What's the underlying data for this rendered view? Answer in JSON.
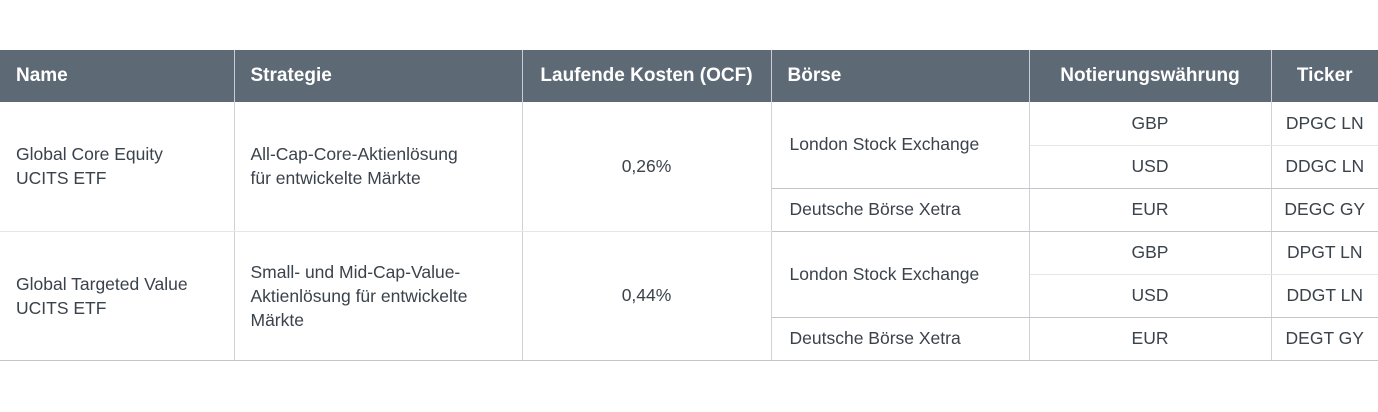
{
  "headers": {
    "name": "Name",
    "strategy": "Strategie",
    "ocf": "Laufende Kosten (OCF)",
    "exchange": "Börse",
    "currency": "Notierungswährung",
    "ticker": "Ticker"
  },
  "funds": [
    {
      "name_line1": "Global Core Equity",
      "name_line2": "UCITS ETF",
      "strategy_line1": "All-Cap-Core-Aktienlösung",
      "strategy_line2": "für entwickelte Märkte",
      "strategy_line3": "",
      "ocf": "0,26%",
      "listings": [
        {
          "exchange": "London Stock Exchange",
          "currency": "GBP",
          "ticker": "DPGC LN"
        },
        {
          "exchange": "London Stock Exchange",
          "currency": "USD",
          "ticker": "DDGC LN"
        },
        {
          "exchange": "Deutsche Börse Xetra",
          "currency": "EUR",
          "ticker": "DEGC GY"
        }
      ]
    },
    {
      "name_line1": "Global Targeted Value",
      "name_line2": "UCITS ETF",
      "strategy_line1": "Small- und Mid-Cap-Value-",
      "strategy_line2": "Aktienlösung für entwickelte",
      "strategy_line3": "Märkte",
      "ocf": "0,44%",
      "listings": [
        {
          "exchange": "London Stock Exchange",
          "currency": "GBP",
          "ticker": "DPGT LN"
        },
        {
          "exchange": "London Stock Exchange",
          "currency": "USD",
          "ticker": "DDGT LN"
        },
        {
          "exchange": "Deutsche Börse Xetra",
          "currency": "EUR",
          "ticker": "DEGT GY"
        }
      ]
    }
  ]
}
